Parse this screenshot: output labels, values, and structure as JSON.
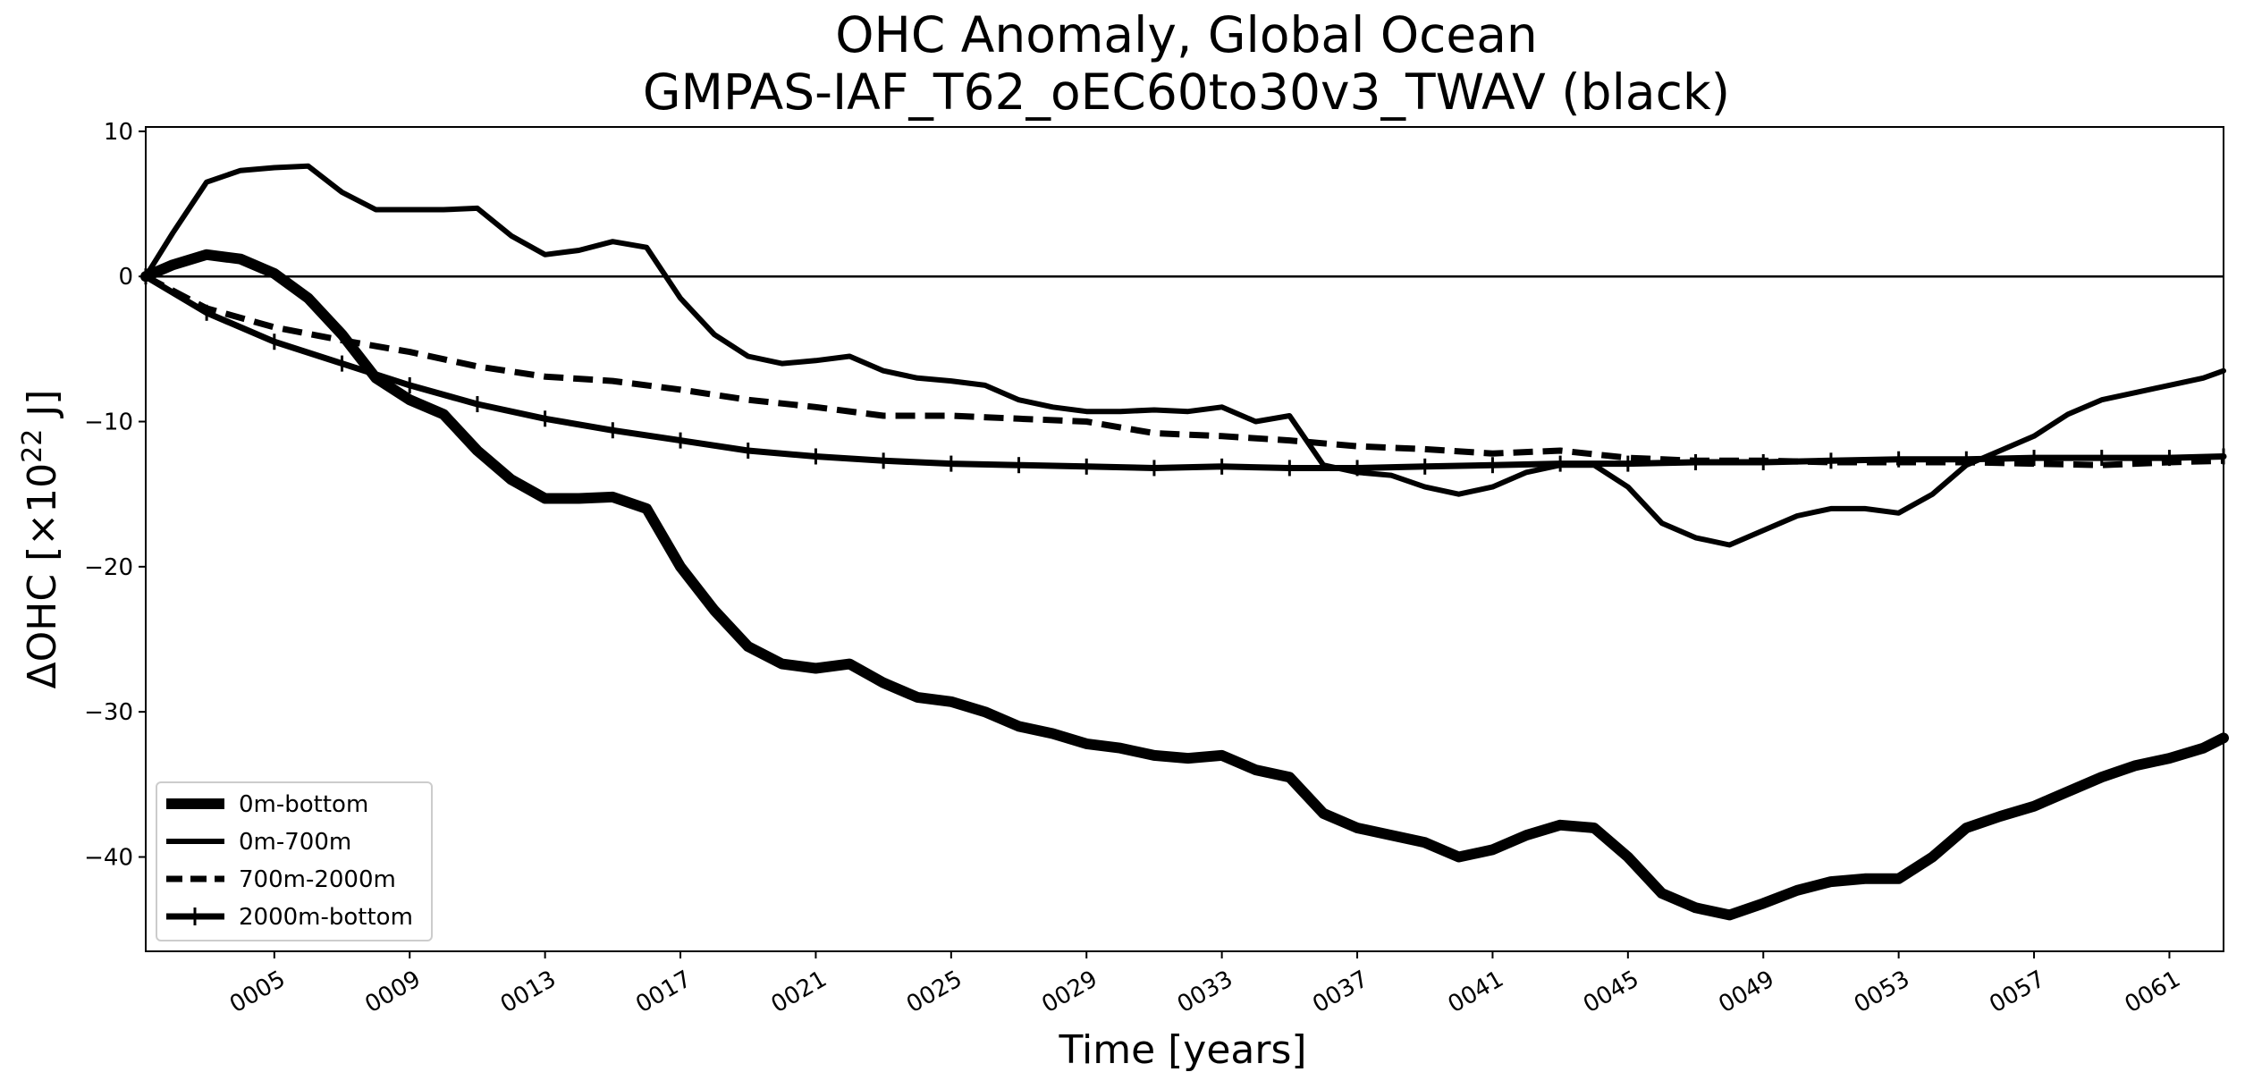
{
  "chart_data": {
    "type": "line",
    "title": "OHC Anomaly, Global Ocean",
    "subtitle": "GMPAS-IAF_T62_oEC60to30v3_TWAV (black)",
    "xlabel": "Time [years]",
    "ylabel_main": "ΔOHC [×10",
    "ylabel_exp": "22",
    "ylabel_unit": " J]",
    "xlim": [
      1.2,
      62.6
    ],
    "ylim": [
      -46.5,
      10.3
    ],
    "xticks": [
      {
        "value": 5,
        "label": "0005"
      },
      {
        "value": 9,
        "label": "0009"
      },
      {
        "value": 13,
        "label": "0013"
      },
      {
        "value": 17,
        "label": "0017"
      },
      {
        "value": 21,
        "label": "0021"
      },
      {
        "value": 25,
        "label": "0025"
      },
      {
        "value": 29,
        "label": "0029"
      },
      {
        "value": 33,
        "label": "0033"
      },
      {
        "value": 37,
        "label": "0037"
      },
      {
        "value": 41,
        "label": "0041"
      },
      {
        "value": 45,
        "label": "0045"
      },
      {
        "value": 49,
        "label": "0049"
      },
      {
        "value": 53,
        "label": "0053"
      },
      {
        "value": 57,
        "label": "0057"
      },
      {
        "value": 61,
        "label": "0061"
      }
    ],
    "yticks": [
      {
        "value": 10,
        "label": "10"
      },
      {
        "value": 0,
        "label": "0"
      },
      {
        "value": -10,
        "label": "−10"
      },
      {
        "value": -20,
        "label": "−20"
      },
      {
        "value": -30,
        "label": "−30"
      },
      {
        "value": -40,
        "label": "−40"
      }
    ],
    "zero_line": 0,
    "legend_position": "lower-left",
    "series": [
      {
        "name": "0m-bottom",
        "style": "thick",
        "x": [
          1.2,
          2,
          3,
          4,
          5,
          6,
          7,
          8,
          9,
          10,
          11,
          12,
          13,
          14,
          15,
          16,
          17,
          18,
          19,
          20,
          21,
          22,
          23,
          24,
          25,
          26,
          27,
          28,
          29,
          30,
          31,
          32,
          33,
          34,
          35,
          36,
          37,
          38,
          39,
          40,
          41,
          42,
          43,
          44,
          45,
          46,
          47,
          48,
          49,
          50,
          51,
          52,
          53,
          54,
          55,
          56,
          57,
          58,
          59,
          60,
          61,
          62,
          62.6
        ],
        "values": [
          0,
          0.8,
          1.5,
          1.2,
          0.2,
          -1.5,
          -4,
          -7,
          -8.5,
          -9.5,
          -12,
          -14,
          -15.3,
          -15.3,
          -15.2,
          -16,
          -20,
          -23,
          -25.5,
          -26.7,
          -27,
          -26.7,
          -28,
          -29,
          -29.3,
          -30,
          -31,
          -31.5,
          -32.2,
          -32.5,
          -33,
          -33.2,
          -33,
          -34,
          -34.5,
          -37,
          -38,
          -38.5,
          -39,
          -40,
          -39.5,
          -38.5,
          -37.8,
          -38,
          -40,
          -42.5,
          -43.5,
          -44,
          -43.2,
          -42.3,
          -41.7,
          -41.5,
          -41.5,
          -40,
          -38,
          -37.2,
          -36.5,
          -35.5,
          -34.5,
          -33.7,
          -33.2,
          -32.5,
          -31.8
        ]
      },
      {
        "name": "0m-700m",
        "style": "solid",
        "x": [
          1.2,
          2,
          3,
          4,
          5,
          6,
          7,
          8,
          9,
          10,
          11,
          12,
          13,
          14,
          15,
          16,
          17,
          18,
          19,
          20,
          21,
          22,
          23,
          24,
          25,
          26,
          27,
          28,
          29,
          30,
          31,
          32,
          33,
          34,
          35,
          36,
          37,
          38,
          39,
          40,
          41,
          42,
          43,
          44,
          45,
          46,
          47,
          48,
          49,
          50,
          51,
          52,
          53,
          54,
          55,
          56,
          57,
          58,
          59,
          60,
          61,
          62,
          62.6
        ],
        "values": [
          0,
          3,
          6.5,
          7.3,
          7.5,
          7.6,
          5.8,
          4.6,
          4.6,
          4.6,
          4.7,
          2.8,
          1.5,
          1.8,
          2.4,
          2,
          -1.5,
          -4,
          -5.5,
          -6,
          -5.8,
          -5.5,
          -6.5,
          -7,
          -7.2,
          -7.5,
          -8.5,
          -9,
          -9.3,
          -9.3,
          -9.2,
          -9.3,
          -9,
          -10,
          -9.6,
          -13,
          -13.5,
          -13.7,
          -14.5,
          -15,
          -14.5,
          -13.5,
          -13,
          -13,
          -14.5,
          -17,
          -18,
          -18.5,
          -17.5,
          -16.5,
          -16,
          -16,
          -16.3,
          -15,
          -13,
          -12,
          -11,
          -9.5,
          -8.5,
          -8,
          -7.5,
          -7,
          -6.5
        ]
      },
      {
        "name": "700m-2000m",
        "style": "dashed",
        "x": [
          1.2,
          3,
          5,
          7,
          9,
          11,
          13,
          15,
          17,
          19,
          21,
          23,
          25,
          27,
          29,
          31,
          33,
          35,
          37,
          39,
          41,
          43,
          45,
          47,
          49,
          51,
          53,
          55,
          57,
          59,
          61,
          62.6
        ],
        "values": [
          0,
          -2.2,
          -3.5,
          -4.4,
          -5.2,
          -6.2,
          -6.9,
          -7.2,
          -7.8,
          -8.5,
          -9,
          -9.6,
          -9.6,
          -9.8,
          -10,
          -10.8,
          -11,
          -11.3,
          -11.7,
          -11.9,
          -12.2,
          -12,
          -12.5,
          -12.7,
          -12.7,
          -12.8,
          -12.8,
          -12.8,
          -12.9,
          -13,
          -12.8,
          -12.7
        ]
      },
      {
        "name": "2000m-bottom",
        "style": "marker",
        "x": [
          1.2,
          3,
          5,
          7,
          9,
          11,
          13,
          15,
          17,
          19,
          21,
          23,
          25,
          27,
          29,
          31,
          33,
          35,
          37,
          39,
          41,
          43,
          45,
          47,
          49,
          51,
          53,
          55,
          57,
          59,
          61,
          62.6
        ],
        "values": [
          0,
          -2.5,
          -4.5,
          -6,
          -7.5,
          -8.8,
          -9.8,
          -10.6,
          -11.3,
          -12,
          -12.4,
          -12.7,
          -12.9,
          -13,
          -13.1,
          -13.2,
          -13.1,
          -13.2,
          -13.2,
          -13.1,
          -13,
          -12.9,
          -12.9,
          -12.8,
          -12.8,
          -12.7,
          -12.6,
          -12.6,
          -12.5,
          -12.5,
          -12.5,
          -12.4
        ]
      }
    ]
  }
}
